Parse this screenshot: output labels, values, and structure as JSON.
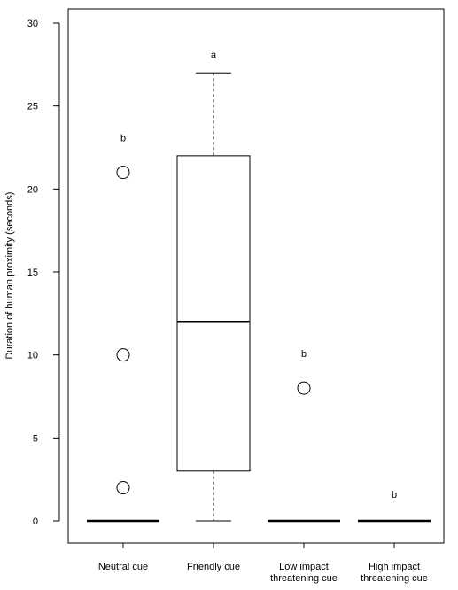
{
  "chart_data": {
    "type": "box",
    "ylabel": "Duration of human proximity (seconds)",
    "ylim": [
      0,
      30
    ],
    "yticks": [
      0,
      5,
      10,
      15,
      20,
      25,
      30
    ],
    "categories": [
      [
        "Neutral cue"
      ],
      [
        "Friendly cue"
      ],
      [
        "Low impact",
        "threatening cue"
      ],
      [
        "High impact",
        "threatening cue"
      ]
    ],
    "boxes": [
      {
        "min": 0,
        "q1": 0,
        "median": 0,
        "q3": 0,
        "max": 0,
        "outliers": [
          2,
          10,
          21
        ],
        "letter": "b",
        "letter_y": 23.1
      },
      {
        "min": 0,
        "q1": 3,
        "median": 12,
        "q3": 22,
        "max": 27,
        "outliers": [],
        "letter": "a",
        "letter_y": 28.1
      },
      {
        "min": 0,
        "q1": 0,
        "median": 0,
        "q3": 0,
        "max": 0,
        "outliers": [
          8
        ],
        "letter": "b",
        "letter_y": 10.1
      },
      {
        "min": 0,
        "q1": 0,
        "median": 0,
        "q3": 0,
        "max": 0,
        "outliers": [],
        "letter": "b",
        "letter_y": 1.6
      }
    ],
    "grid": false,
    "legend": "none"
  }
}
